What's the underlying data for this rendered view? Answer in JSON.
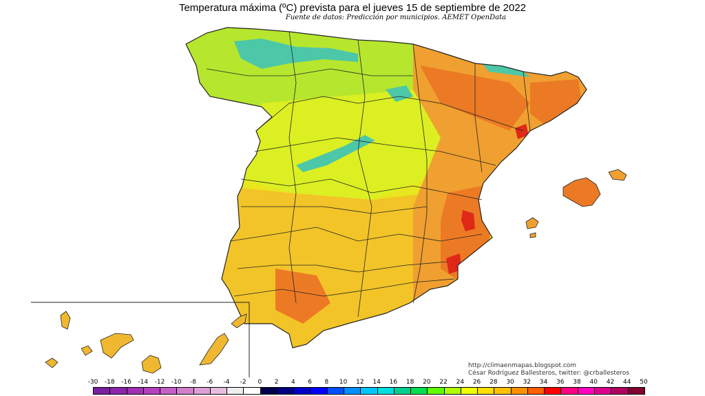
{
  "map": {
    "title": "Temperatura máxima (ºC) prevista para el jueves 15 de septiembre de 2022",
    "subtitle": "Fuente de datos: Predicción por municipios. AEMET OpenData",
    "credits": {
      "url": "http://climaenmapas.blogspot.com",
      "author": "César Rodríguez Ballesteros, twitter: @crballesteros"
    },
    "legend": {
      "labels": [
        "-30",
        "-18",
        "-16",
        "-14",
        "-12",
        "-10",
        "-8",
        "-6",
        "-4",
        "-2",
        "0",
        "2",
        "4",
        "6",
        "8",
        "10",
        "12",
        "14",
        "16",
        "18",
        "20",
        "22",
        "24",
        "26",
        "28",
        "30",
        "32",
        "34",
        "36",
        "38",
        "40",
        "42",
        "44",
        "50"
      ],
      "colors": [
        "#7b1fa2",
        "#8e24aa",
        "#a02fb4",
        "#b440be",
        "#c460c6",
        "#d080cc",
        "#dca0d6",
        "#e6bee0",
        "#eeeeee",
        "#ffffff",
        "#00004a",
        "#000080",
        "#0000c8",
        "#0000ff",
        "#0050ff",
        "#0090ff",
        "#00c8ff",
        "#00e0e0",
        "#00d090",
        "#00e050",
        "#60ff00",
        "#b0ff00",
        "#f0ff00",
        "#ffe000",
        "#ffc000",
        "#ff9000",
        "#ff6000",
        "#ff0000",
        "#ff0080",
        "#ff00c0",
        "#e00090",
        "#b00060",
        "#800030"
      ]
    },
    "zones": {
      "north": "#b6e62e",
      "mountains": "#4cc8a8",
      "central": "#dcef22",
      "south": "#f2c428",
      "warm": "#f0a030",
      "hot": "#ec7a24",
      "hottest": "#e02818",
      "islands": "#f0b830",
      "borders": "#222222"
    }
  }
}
